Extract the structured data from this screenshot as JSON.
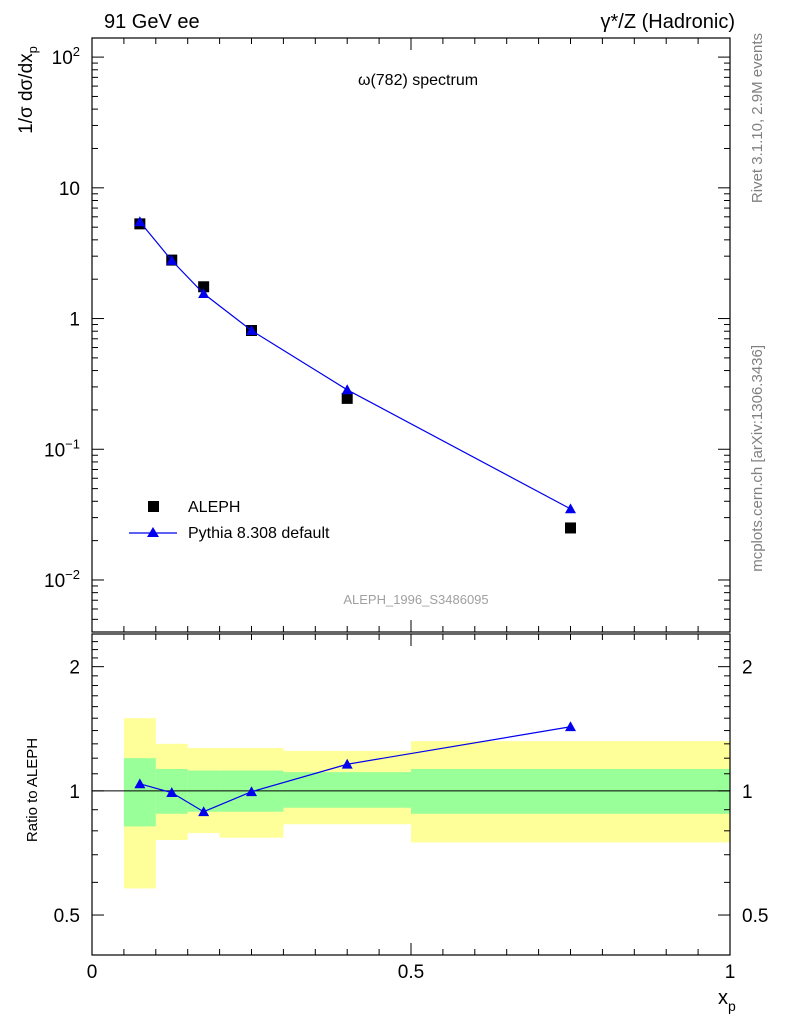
{
  "header": {
    "left": "91 GeV ee",
    "right": "γ*/Z (Hadronic)"
  },
  "side_labels": {
    "rivet": "Rivet 3.1.10,  2.9M events",
    "mcplots": "mcplots.cern.ch [arXiv:1306.3436]"
  },
  "chart_data": [
    {
      "type": "scatter",
      "title": "ω(782) spectrum",
      "watermark": "ALEPH_1996_S3486095",
      "xlabel": "",
      "ylabel": "1/σ dσ/dxp",
      "yscale": "log",
      "xlim": [
        0,
        1
      ],
      "ylim": [
        0.004,
        140
      ],
      "x_ticks": [
        "0",
        "0.5",
        "1"
      ],
      "y_ticks": [
        "10^-2",
        "10^-1",
        "1",
        "10",
        "10^2"
      ],
      "legend_position": "bottom-left",
      "series": [
        {
          "name": "ALEPH",
          "marker": "square",
          "color": "#000000",
          "x": [
            0.075,
            0.125,
            0.175,
            0.25,
            0.4,
            0.75
          ],
          "y": [
            5.3,
            2.8,
            1.75,
            0.81,
            0.245,
            0.025
          ]
        },
        {
          "name": "Pythia 8.308 default",
          "marker": "triangle",
          "line": true,
          "color": "#0000ee",
          "x": [
            0.075,
            0.125,
            0.175,
            0.25,
            0.4,
            0.75
          ],
          "y": [
            5.5,
            2.78,
            1.55,
            0.81,
            0.285,
            0.035
          ]
        }
      ]
    },
    {
      "type": "line",
      "xlabel": "xp",
      "ylabel": "Ratio to ALEPH",
      "yscale": "log",
      "xlim": [
        0,
        1
      ],
      "ylim": [
        0.4,
        2.4
      ],
      "x_ticks": [
        "0",
        "0.5",
        "1"
      ],
      "y_ticks": [
        "0.5",
        "1",
        "2"
      ],
      "reference_line": 1,
      "uncertainty_bands": {
        "bins": [
          0.05,
          0.1,
          0.15,
          0.2,
          0.3,
          0.5,
          1.0
        ],
        "inner_color": "#99ff99",
        "outer_color": "#ffff99",
        "inner": [
          [
            0.82,
            1.2
          ],
          [
            0.88,
            1.13
          ],
          [
            0.89,
            1.12
          ],
          [
            0.89,
            1.12
          ],
          [
            0.91,
            1.11
          ],
          [
            0.88,
            1.13
          ]
        ],
        "outer": [
          [
            0.58,
            1.5
          ],
          [
            0.76,
            1.3
          ],
          [
            0.79,
            1.27
          ],
          [
            0.77,
            1.27
          ],
          [
            0.83,
            1.25
          ],
          [
            0.75,
            1.32
          ]
        ]
      },
      "series": [
        {
          "name": "Pythia 8.308 default",
          "marker": "triangle",
          "color": "#0000ee",
          "x": [
            0.075,
            0.125,
            0.175,
            0.25,
            0.4,
            0.75
          ],
          "y": [
            1.04,
            0.99,
            0.89,
            0.995,
            1.16,
            1.43
          ]
        }
      ]
    }
  ]
}
